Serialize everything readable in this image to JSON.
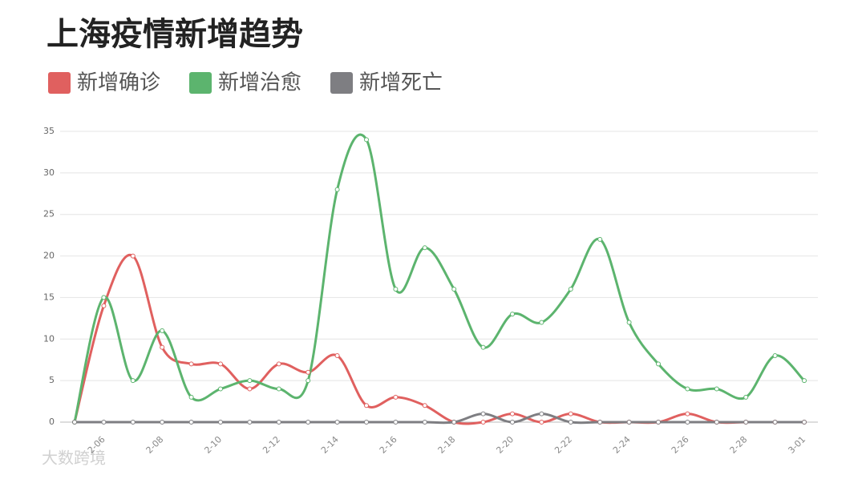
{
  "chart_data": {
    "type": "line",
    "title": "上海疫情新增趋势",
    "categories": [
      null,
      "2-06",
      null,
      "2-08",
      null,
      "2-10",
      null,
      "2-12",
      null,
      "2-14",
      null,
      "2-16",
      null,
      "2-18",
      null,
      "2-20",
      null,
      "2-22",
      null,
      "2-24",
      null,
      "2-26",
      null,
      "2-28",
      null,
      "3-01"
    ],
    "series": [
      {
        "name": "新增确诊",
        "color": "#e0605f",
        "values": [
          0,
          14,
          20,
          9,
          7,
          7,
          4,
          7,
          6,
          8,
          2,
          3,
          2,
          0,
          0,
          1,
          0,
          1,
          0,
          0,
          0,
          1,
          0,
          0,
          0,
          0
        ]
      },
      {
        "name": "新增治愈",
        "color": "#5cb46e",
        "values": [
          0,
          15,
          5,
          11,
          3,
          4,
          5,
          4,
          5,
          28,
          34,
          16,
          21,
          16,
          9,
          13,
          12,
          16,
          22,
          12,
          7,
          4,
          4,
          3,
          8,
          5
        ]
      },
      {
        "name": "新增死亡",
        "color": "#7e7e82",
        "values": [
          0,
          0,
          0,
          0,
          0,
          0,
          0,
          0,
          0,
          0,
          0,
          0,
          0,
          0,
          1,
          0,
          1,
          0,
          0,
          0,
          0,
          0,
          0,
          0,
          0,
          0
        ]
      }
    ],
    "ylim": [
      0,
      35
    ],
    "yticks": [
      0,
      5,
      10,
      15,
      20,
      25,
      30,
      35
    ],
    "grid": true,
    "legend": "top-left",
    "watermark": "大数跨境"
  }
}
